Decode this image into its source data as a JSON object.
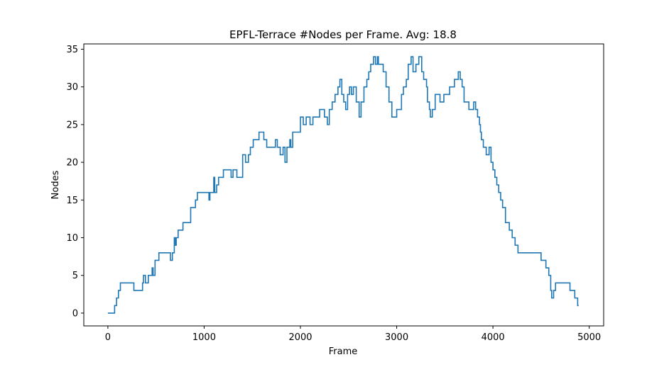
{
  "chart_data": {
    "type": "line",
    "title": "EPFL-Terrace #Nodes per Frame. Avg: 18.8",
    "xlabel": "Frame",
    "ylabel": "Nodes",
    "xlim": [
      -250,
      5150
    ],
    "ylim": [
      -1.7,
      35.7
    ],
    "grid": false,
    "line_color": "#1f77b4",
    "xticks": [
      0,
      1000,
      2000,
      3000,
      4000,
      5000
    ],
    "xtick_labels": [
      "0",
      "1000",
      "2000",
      "3000",
      "4000",
      "5000"
    ],
    "yticks": [
      0,
      5,
      10,
      15,
      20,
      25,
      30,
      35
    ],
    "ytick_labels": [
      "0",
      "5",
      "10",
      "15",
      "20",
      "25",
      "30",
      "35"
    ],
    "series": [
      {
        "x": [
          0,
          60,
          70,
          90,
          110,
          130,
          270,
          360,
          370,
          390,
          420,
          460,
          470,
          490,
          530,
          650,
          670,
          690,
          700,
          710,
          730,
          780,
          860,
          910,
          930,
          1050,
          1060,
          1100,
          1110,
          1130,
          1150,
          1200,
          1280,
          1300,
          1340,
          1400,
          1430,
          1460,
          1480,
          1510,
          1570,
          1620,
          1650,
          1740,
          1760,
          1790,
          1820,
          1840,
          1860,
          1890,
          1900,
          1920,
          1950,
          2000,
          2030,
          2060,
          2100,
          2130,
          2170,
          2200,
          2250,
          2280,
          2300,
          2330,
          2360,
          2390,
          2410,
          2430,
          2450,
          2470,
          2490,
          2510,
          2530,
          2550,
          2580,
          2610,
          2630,
          2660,
          2690,
          2710,
          2730,
          2760,
          2780,
          2800,
          2810,
          2860,
          2890,
          2920,
          2950,
          3000,
          3050,
          3070,
          3100,
          3120,
          3150,
          3170,
          3200,
          3230,
          3260,
          3280,
          3310,
          3320,
          3340,
          3350,
          3370,
          3400,
          3450,
          3490,
          3550,
          3600,
          3640,
          3660,
          3680,
          3700,
          3750,
          3780,
          3800,
          3820,
          3840,
          3860,
          3870,
          3880,
          3900,
          3930,
          3960,
          3980,
          4000,
          4020,
          4040,
          4060,
          4080,
          4100,
          4130,
          4170,
          4200,
          4230,
          4260,
          4280,
          4300,
          4350,
          4400,
          4450,
          4500,
          4550,
          4580,
          4600,
          4610,
          4630,
          4650,
          4700,
          4800,
          4850,
          4880,
          4890
        ],
        "y": [
          0,
          0,
          1,
          2,
          3,
          4,
          3,
          4,
          5,
          4,
          5,
          6,
          5,
          7,
          8,
          7,
          8,
          10,
          9,
          10,
          11,
          12,
          14,
          15,
          16,
          15,
          16,
          18,
          16,
          17,
          18,
          19,
          18,
          19,
          18,
          21,
          20,
          21,
          22,
          23,
          24,
          23,
          22,
          23,
          22,
          21,
          22,
          20,
          22,
          23,
          22,
          24,
          24,
          26,
          25,
          26,
          25,
          26,
          26,
          27,
          26,
          25,
          27,
          28,
          29,
          30,
          31,
          29,
          28,
          27,
          29,
          30,
          29,
          30,
          28,
          26,
          28,
          30,
          31,
          32,
          33,
          34,
          33,
          34,
          33,
          32,
          30,
          28,
          26,
          27,
          29,
          30,
          31,
          33,
          34,
          32,
          33,
          34,
          32,
          31,
          30,
          28,
          27,
          26,
          27,
          29,
          28,
          29,
          30,
          31,
          32,
          31,
          30,
          28,
          27,
          27,
          28,
          27,
          26,
          25,
          24,
          23,
          22,
          21,
          22,
          20,
          19,
          18,
          17,
          16,
          15,
          14,
          12,
          11,
          10,
          9,
          8,
          8,
          8,
          8,
          8,
          8,
          7,
          6,
          5,
          3,
          2,
          3,
          4,
          4,
          3,
          2,
          1,
          1
        ]
      }
    ]
  }
}
